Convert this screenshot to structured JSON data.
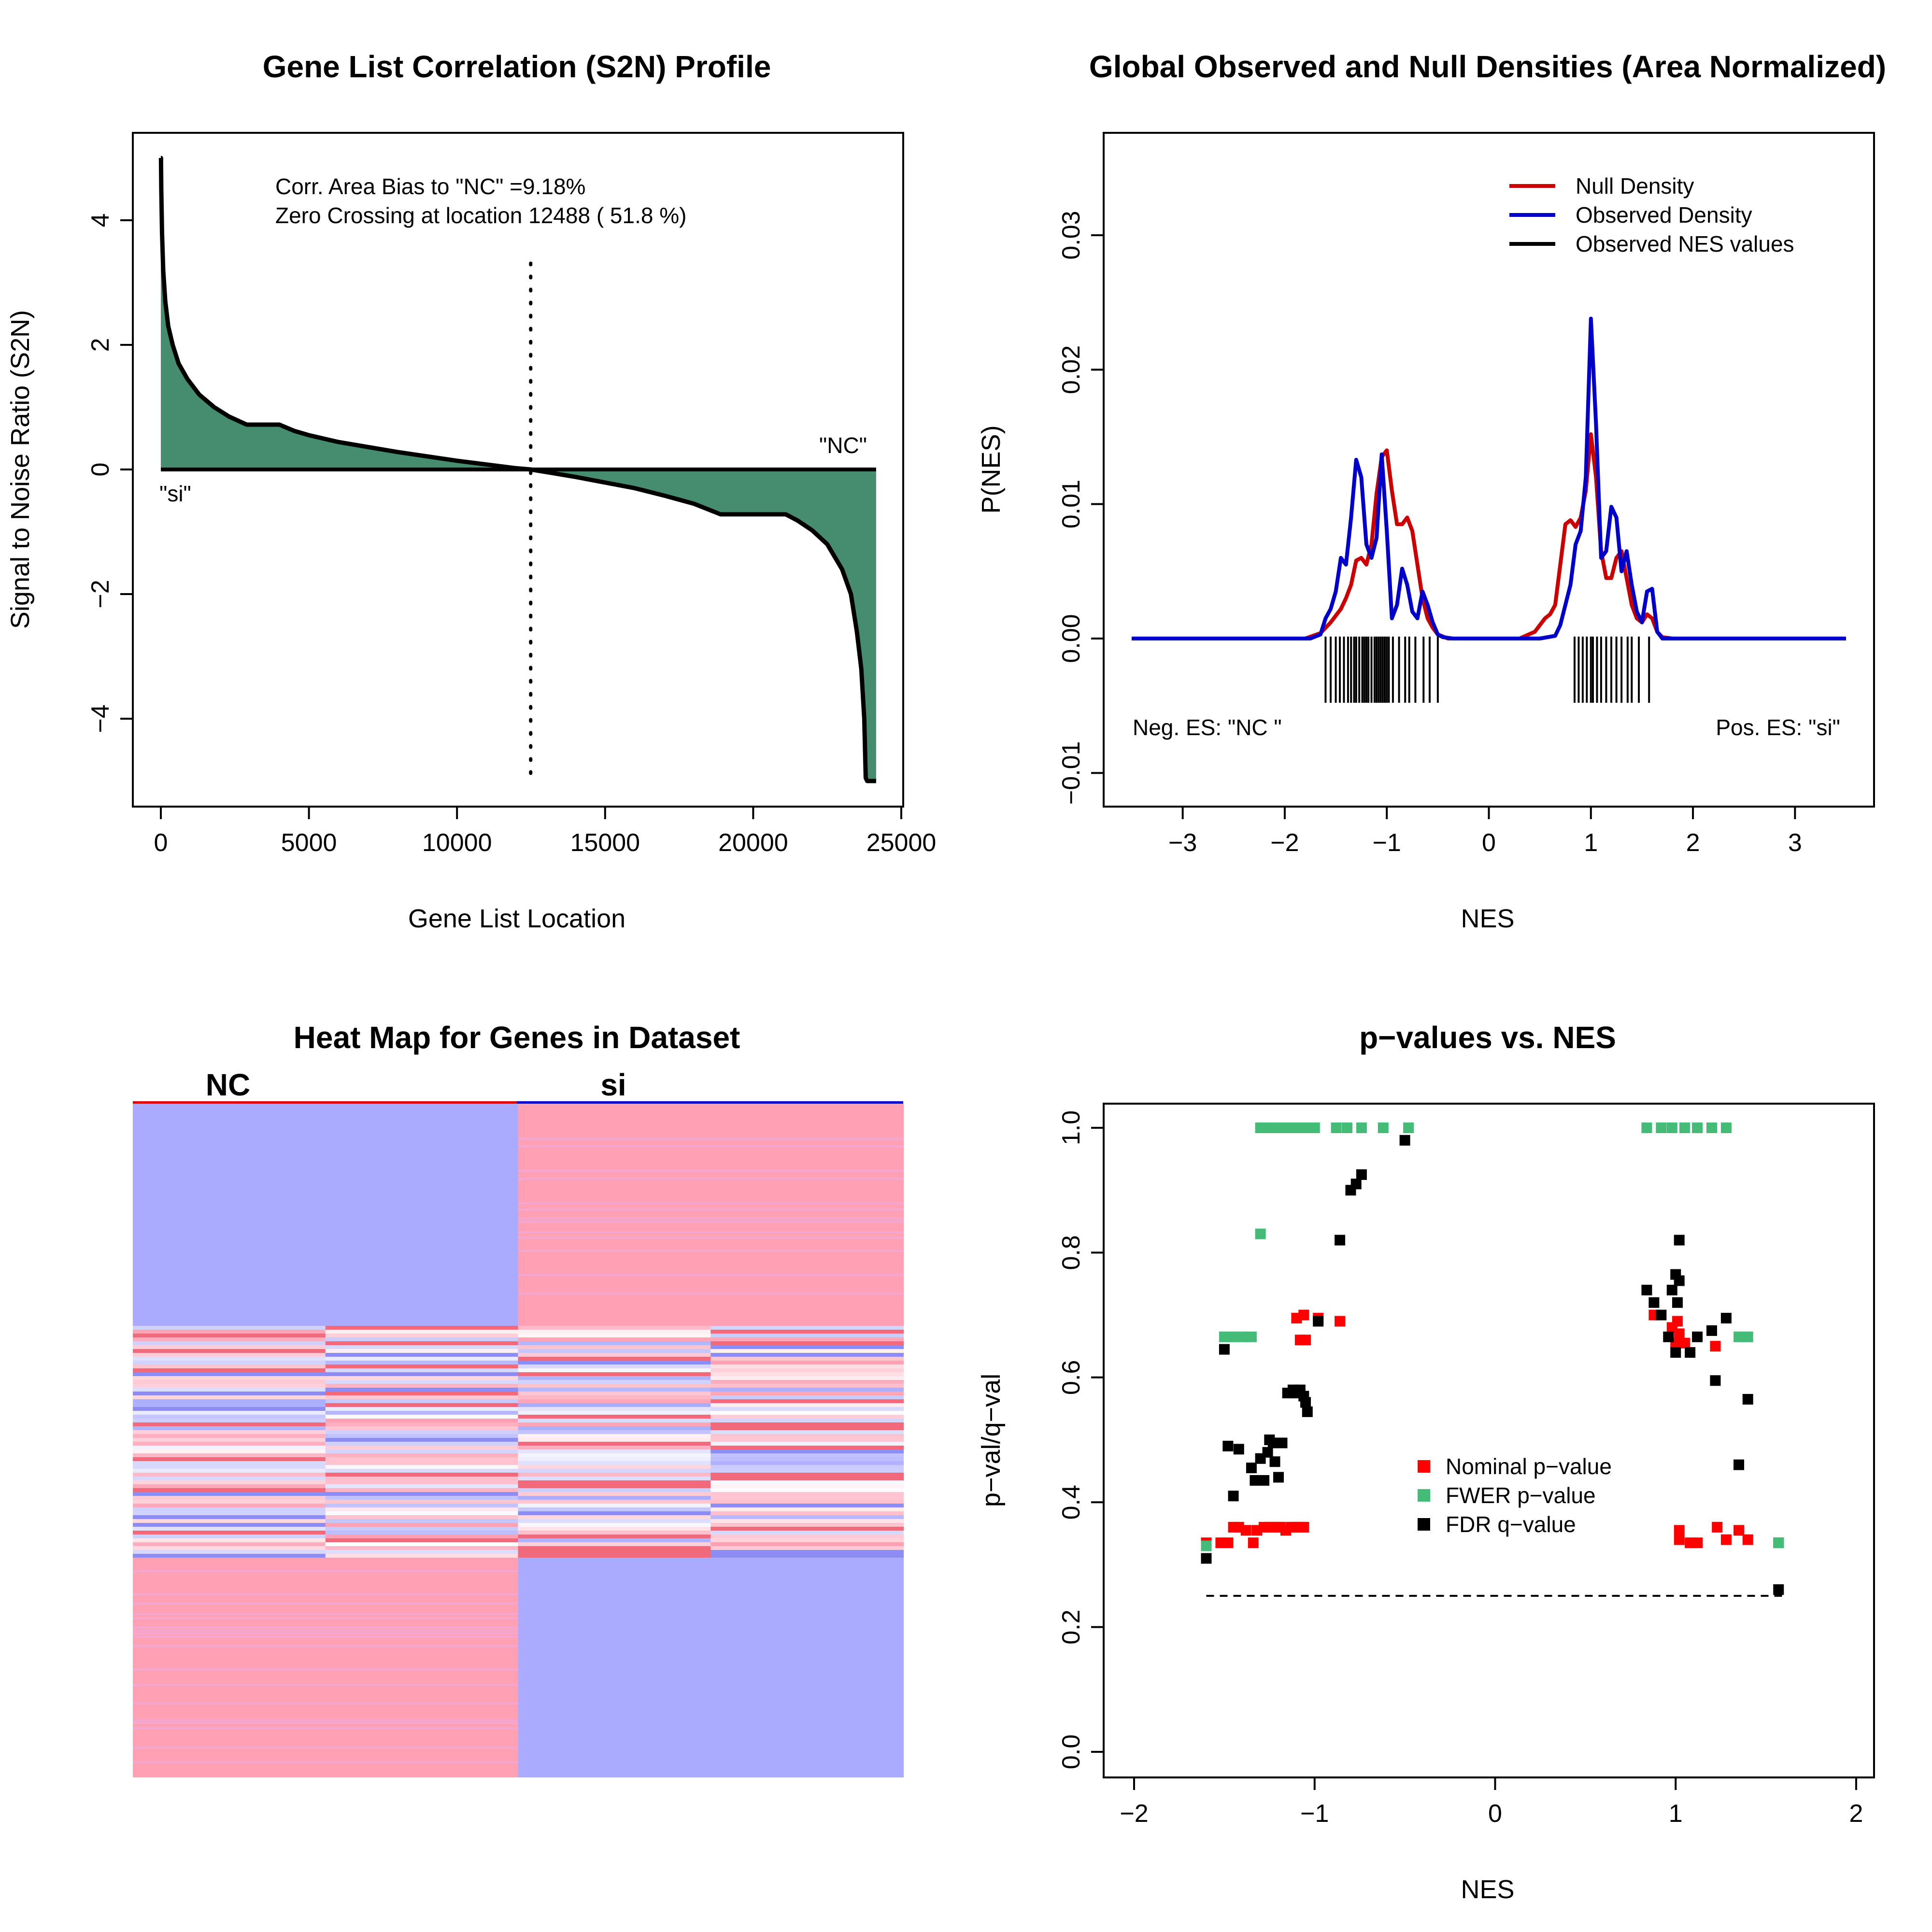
{
  "chart_data": [
    {
      "type": "area",
      "title": "Gene List Correlation (S2N) Profile",
      "xlabel": "Gene List Location",
      "ylabel": "Signal to Noise Ratio (S2N)",
      "xlim": [
        0,
        25000
      ],
      "ylim": [
        -5,
        5
      ],
      "x_ticks": [
        0,
        5000,
        10000,
        15000,
        20000,
        25000
      ],
      "y_ticks": [
        -4,
        -2,
        0,
        2,
        4
      ],
      "annotations": [
        "Corr. Area Bias to \"NC\" =9.18%",
        "Zero Crossing at location  12488  ( 51.8  %)"
      ],
      "end_labels": {
        "left": "\"si\"",
        "right": "\"NC\""
      },
      "zero_crossing": 12488,
      "fill_color": "#468C6E",
      "series": [
        {
          "x": [
            0,
            5,
            15,
            40,
            80,
            150,
            250,
            400,
            600,
            900,
            1300,
            1800,
            2300,
            2900,
            3500,
            4000,
            4500,
            5000,
            6000,
            7000,
            8000,
            9000,
            10000,
            11000,
            12000,
            12488,
            13000,
            14000,
            15000,
            16000,
            17000,
            18000,
            18900,
            19500,
            20500,
            21100,
            21500,
            22000,
            22500,
            23000,
            23300,
            23500,
            23650,
            23750,
            23800,
            23850,
            24000,
            24150
          ],
          "y": [
            5.0,
            5.0,
            4.5,
            3.8,
            3.2,
            2.7,
            2.3,
            2.0,
            1.7,
            1.45,
            1.2,
            1.0,
            0.85,
            0.72,
            0.72,
            0.72,
            0.62,
            0.55,
            0.44,
            0.36,
            0.28,
            0.21,
            0.14,
            0.08,
            0.02,
            0.0,
            -0.04,
            -0.12,
            -0.21,
            -0.3,
            -0.42,
            -0.55,
            -0.72,
            -0.72,
            -0.72,
            -0.72,
            -0.82,
            -0.98,
            -1.2,
            -1.6,
            -2.0,
            -2.6,
            -3.2,
            -4.0,
            -4.95,
            -5.0,
            -5.0,
            -5.0
          ]
        }
      ]
    },
    {
      "type": "line",
      "title": "Global Observed and Null Densities (Area Normalized)",
      "xlabel": "NES",
      "ylabel": "P(NES)",
      "xlim": [
        -3.5,
        3.5
      ],
      "ylim": [
        -0.01,
        0.035
      ],
      "x_ticks": [
        -3,
        -2,
        -1,
        0,
        1,
        2,
        3
      ],
      "y_ticks": [
        -0.01,
        0.0,
        0.01,
        0.02,
        0.03
      ],
      "y_tick_labels": [
        "−0.01",
        "0.00",
        "0.01",
        "0.02",
        "0.03"
      ],
      "legend_position": "top-right",
      "corner_labels": {
        "left": "Neg. ES: \"NC \"",
        "right": "Pos. ES: \"si\""
      },
      "series": [
        {
          "name": "Null Density",
          "color": "#CC0000",
          "x": [
            -3.5,
            -1.8,
            -1.65,
            -1.55,
            -1.45,
            -1.4,
            -1.35,
            -1.3,
            -1.25,
            -1.2,
            -1.15,
            -1.1,
            -1.05,
            -1.0,
            -0.95,
            -0.9,
            -0.85,
            -0.8,
            -0.75,
            -0.7,
            -0.65,
            -0.6,
            -0.55,
            -0.5,
            -0.4,
            -0.3,
            0.3,
            0.45,
            0.55,
            0.6,
            0.65,
            0.7,
            0.75,
            0.8,
            0.85,
            0.9,
            0.95,
            1.0,
            1.05,
            1.1,
            1.15,
            1.2,
            1.25,
            1.3,
            1.35,
            1.4,
            1.45,
            1.5,
            1.55,
            1.6,
            1.65,
            1.7,
            1.8,
            3.5
          ],
          "y": [
            0,
            0,
            0.0004,
            0.0012,
            0.0022,
            0.003,
            0.004,
            0.0058,
            0.006,
            0.0055,
            0.007,
            0.0108,
            0.0135,
            0.014,
            0.011,
            0.0085,
            0.0085,
            0.009,
            0.008,
            0.0055,
            0.003,
            0.0015,
            0.0008,
            0.0003,
            0,
            0,
            0,
            0.0005,
            0.0015,
            0.0018,
            0.0025,
            0.0055,
            0.0085,
            0.0088,
            0.0083,
            0.009,
            0.011,
            0.0152,
            0.012,
            0.0065,
            0.0045,
            0.0045,
            0.006,
            0.0065,
            0.0045,
            0.0025,
            0.0015,
            0.0012,
            0.0018,
            0.0015,
            0.0005,
            0.0001,
            0,
            0
          ]
        },
        {
          "name": "Observed Density",
          "color": "#0000CC",
          "x": [
            -3.5,
            -1.75,
            -1.65,
            -1.6,
            -1.55,
            -1.5,
            -1.45,
            -1.4,
            -1.35,
            -1.3,
            -1.25,
            -1.2,
            -1.15,
            -1.1,
            -1.05,
            -1.0,
            -0.95,
            -0.9,
            -0.85,
            -0.8,
            -0.75,
            -0.7,
            -0.65,
            -0.6,
            -0.55,
            -0.5,
            -0.45,
            -0.35,
            0.5,
            0.65,
            0.7,
            0.75,
            0.8,
            0.85,
            0.9,
            0.95,
            1.0,
            1.05,
            1.1,
            1.15,
            1.2,
            1.25,
            1.3,
            1.35,
            1.4,
            1.45,
            1.5,
            1.55,
            1.6,
            1.65,
            1.7,
            3.5
          ],
          "y": [
            0,
            0,
            0.0003,
            0.0015,
            0.0022,
            0.0035,
            0.006,
            0.0055,
            0.009,
            0.0133,
            0.012,
            0.007,
            0.006,
            0.0075,
            0.0137,
            0.008,
            0.0015,
            0.0025,
            0.0052,
            0.004,
            0.002,
            0.0015,
            0.0035,
            0.0025,
            0.0012,
            0.0003,
            0.0001,
            0,
            0,
            0.0002,
            0.001,
            0.0025,
            0.004,
            0.007,
            0.008,
            0.012,
            0.0238,
            0.016,
            0.006,
            0.0065,
            0.0098,
            0.009,
            0.005,
            0.0065,
            0.004,
            0.002,
            0.0012,
            0.0035,
            0.0037,
            0.0005,
            0,
            0
          ]
        },
        {
          "name": "Observed NES values",
          "color": "#000000",
          "values": [
            -1.6,
            -1.55,
            -1.5,
            -1.46,
            -1.42,
            -1.38,
            -1.35,
            -1.32,
            -1.3,
            -1.27,
            -1.24,
            -1.22,
            -1.2,
            -1.18,
            -1.15,
            -1.12,
            -1.1,
            -1.08,
            -1.06,
            -1.04,
            -1.02,
            -1.0,
            -0.98,
            -0.94,
            -0.88,
            -0.82,
            -0.78,
            -0.72,
            -0.64,
            -0.58,
            -0.5,
            0.84,
            0.88,
            0.92,
            0.96,
            1.0,
            1.02,
            1.06,
            1.1,
            1.15,
            1.2,
            1.25,
            1.3,
            1.36,
            1.4,
            1.47,
            1.57
          ]
        }
      ]
    },
    {
      "type": "heatmap",
      "title": "Heat Map for Genes in Dataset",
      "column_groups": [
        {
          "label": "NC",
          "color": "#DD0000"
        },
        {
          "label": "si",
          "color": "#0000CC"
        }
      ],
      "colors": {
        "high": "#FFA0B4",
        "low": "#AAAAFF",
        "mid": "#FFFFFF",
        "strong_high": "#F06A7C",
        "strong_low": "#8C8CF2"
      },
      "sections": [
        {
          "name": "top",
          "pattern": [
            "low",
            "low",
            "high",
            "high"
          ]
        },
        {
          "name": "middle",
          "pattern": "mixed"
        },
        {
          "name": "bottom",
          "pattern": [
            "high",
            "high",
            "low",
            "low"
          ]
        }
      ]
    },
    {
      "type": "scatter",
      "title": "p−values vs. NES",
      "xlabel": "NES",
      "ylabel": "p−val/q−val",
      "xlim": [
        -2,
        2
      ],
      "ylim": [
        0,
        1
      ],
      "x_ticks": [
        -2,
        -1,
        0,
        1,
        2
      ],
      "y_ticks": [
        0.0,
        0.2,
        0.4,
        0.6,
        0.8,
        1.0
      ],
      "y_tick_labels": [
        "0.0",
        "0.2",
        "0.4",
        "0.6",
        "0.8",
        "1.0"
      ],
      "threshold_line": 0.25,
      "legend_position": "center",
      "series": [
        {
          "name": "Nominal p−value",
          "color": "#FF0000",
          "points": [
            [
              -1.6,
              0.335
            ],
            [
              -1.52,
              0.335
            ],
            [
              -1.48,
              0.335
            ],
            [
              -1.45,
              0.36
            ],
            [
              -1.42,
              0.36
            ],
            [
              -1.38,
              0.355
            ],
            [
              -1.34,
              0.335
            ],
            [
              -1.32,
              0.355
            ],
            [
              -1.28,
              0.36
            ],
            [
              -1.25,
              0.36
            ],
            [
              -1.22,
              0.36
            ],
            [
              -1.19,
              0.36
            ],
            [
              -1.16,
              0.355
            ],
            [
              -1.13,
              0.36
            ],
            [
              -1.1,
              0.36
            ],
            [
              -1.08,
              0.36
            ],
            [
              -1.06,
              0.36
            ],
            [
              -1.1,
              0.695
            ],
            [
              -1.06,
              0.7
            ],
            [
              -0.98,
              0.695
            ],
            [
              -1.08,
              0.66
            ],
            [
              -1.05,
              0.66
            ],
            [
              -0.86,
              0.69
            ],
            [
              0.88,
              0.7
            ],
            [
              0.98,
              0.68
            ],
            [
              1.01,
              0.69
            ],
            [
              1.02,
              0.67
            ],
            [
              1.0,
              0.655
            ],
            [
              1.05,
              0.655
            ],
            [
              1.22,
              0.65
            ],
            [
              1.02,
              0.355
            ],
            [
              1.02,
              0.34
            ],
            [
              1.08,
              0.335
            ],
            [
              1.12,
              0.335
            ],
            [
              1.23,
              0.36
            ],
            [
              1.28,
              0.34
            ],
            [
              1.35,
              0.355
            ],
            [
              1.4,
              0.34
            ],
            [
              1.57,
              0.335
            ]
          ]
        },
        {
          "name": "FWER p−value",
          "color": "#44BB77",
          "points": [
            [
              -1.6,
              0.33
            ],
            [
              -1.3,
              1.0
            ],
            [
              -1.26,
              1.0
            ],
            [
              -1.22,
              1.0
            ],
            [
              -1.18,
              1.0
            ],
            [
              -1.15,
              1.0
            ],
            [
              -1.12,
              1.0
            ],
            [
              -1.09,
              1.0
            ],
            [
              -1.06,
              1.0
            ],
            [
              -1.03,
              1.0
            ],
            [
              -1.0,
              1.0
            ],
            [
              -0.88,
              1.0
            ],
            [
              -0.82,
              1.0
            ],
            [
              -0.74,
              1.0
            ],
            [
              -0.62,
              1.0
            ],
            [
              -0.48,
              1.0
            ],
            [
              -1.3,
              0.83
            ],
            [
              -1.5,
              0.665
            ],
            [
              -1.45,
              0.665
            ],
            [
              -1.4,
              0.665
            ],
            [
              -1.35,
              0.665
            ],
            [
              0.84,
              1.0
            ],
            [
              0.92,
              1.0
            ],
            [
              0.98,
              1.0
            ],
            [
              1.05,
              1.0
            ],
            [
              1.12,
              1.0
            ],
            [
              1.2,
              1.0
            ],
            [
              1.28,
              1.0
            ],
            [
              1.35,
              0.665
            ],
            [
              1.4,
              0.665
            ],
            [
              1.57,
              0.335
            ]
          ]
        },
        {
          "name": "FDR q−value",
          "color": "#000000",
          "points": [
            [
              -1.6,
              0.31
            ],
            [
              -1.5,
              0.645
            ],
            [
              -1.48,
              0.49
            ],
            [
              -1.45,
              0.41
            ],
            [
              -1.42,
              0.485
            ],
            [
              -1.35,
              0.455
            ],
            [
              -1.33,
              0.435
            ],
            [
              -1.3,
              0.47
            ],
            [
              -1.28,
              0.435
            ],
            [
              -1.26,
              0.48
            ],
            [
              -1.25,
              0.5
            ],
            [
              -1.23,
              0.495
            ],
            [
              -1.22,
              0.465
            ],
            [
              -1.2,
              0.44
            ],
            [
              -1.18,
              0.495
            ],
            [
              -1.15,
              0.575
            ],
            [
              -1.12,
              0.58
            ],
            [
              -1.1,
              0.575
            ],
            [
              -1.08,
              0.58
            ],
            [
              -1.06,
              0.57
            ],
            [
              -1.05,
              0.56
            ],
            [
              -1.04,
              0.545
            ],
            [
              -0.98,
              0.69
            ],
            [
              -0.86,
              0.82
            ],
            [
              -0.8,
              0.9
            ],
            [
              -0.77,
              0.91
            ],
            [
              -0.74,
              0.925
            ],
            [
              -0.5,
              0.98
            ],
            [
              0.84,
              0.74
            ],
            [
              0.88,
              0.72
            ],
            [
              0.92,
              0.7
            ],
            [
              0.96,
              0.665
            ],
            [
              0.98,
              0.74
            ],
            [
              1.0,
              0.64
            ],
            [
              1.0,
              0.765
            ],
            [
              1.01,
              0.72
            ],
            [
              1.02,
              0.755
            ],
            [
              1.02,
              0.82
            ],
            [
              1.08,
              0.64
            ],
            [
              1.12,
              0.665
            ],
            [
              1.2,
              0.675
            ],
            [
              1.22,
              0.595
            ],
            [
              1.28,
              0.695
            ],
            [
              1.35,
              0.46
            ],
            [
              1.4,
              0.565
            ],
            [
              1.57,
              0.26
            ]
          ]
        }
      ]
    }
  ]
}
